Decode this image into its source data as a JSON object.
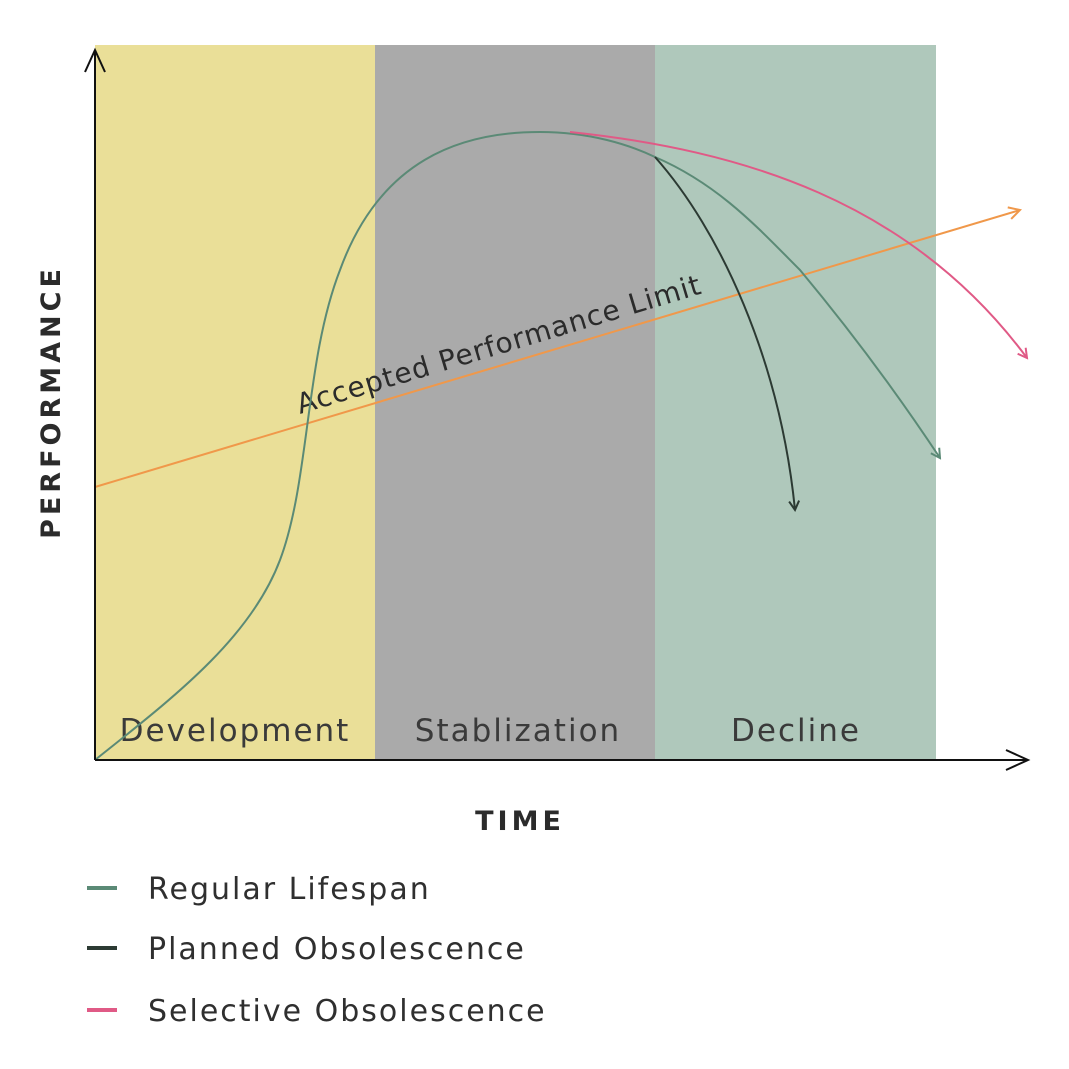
{
  "phases": [
    "Development",
    "Stablization",
    "Decline"
  ],
  "colors": {
    "development": "#eadf98",
    "stabilization": "#aaaaaa",
    "decline": "#afc8bb",
    "regular": "#5b8a76",
    "planned": "#2c3a33",
    "selective": "#e05a86",
    "limit": "#f0984a",
    "axis": "#111111"
  },
  "axes": {
    "x_label": "TIME",
    "y_label": "PERFORMANCE"
  },
  "limit_line": {
    "label": "Accepted Performance Limit"
  },
  "legend": [
    {
      "label": "Regular Lifespan",
      "color_key": "regular"
    },
    {
      "label": "Planned Obsolescence",
      "color_key": "planned"
    },
    {
      "label": "Selective Obsolescence",
      "color_key": "selective"
    }
  ]
}
